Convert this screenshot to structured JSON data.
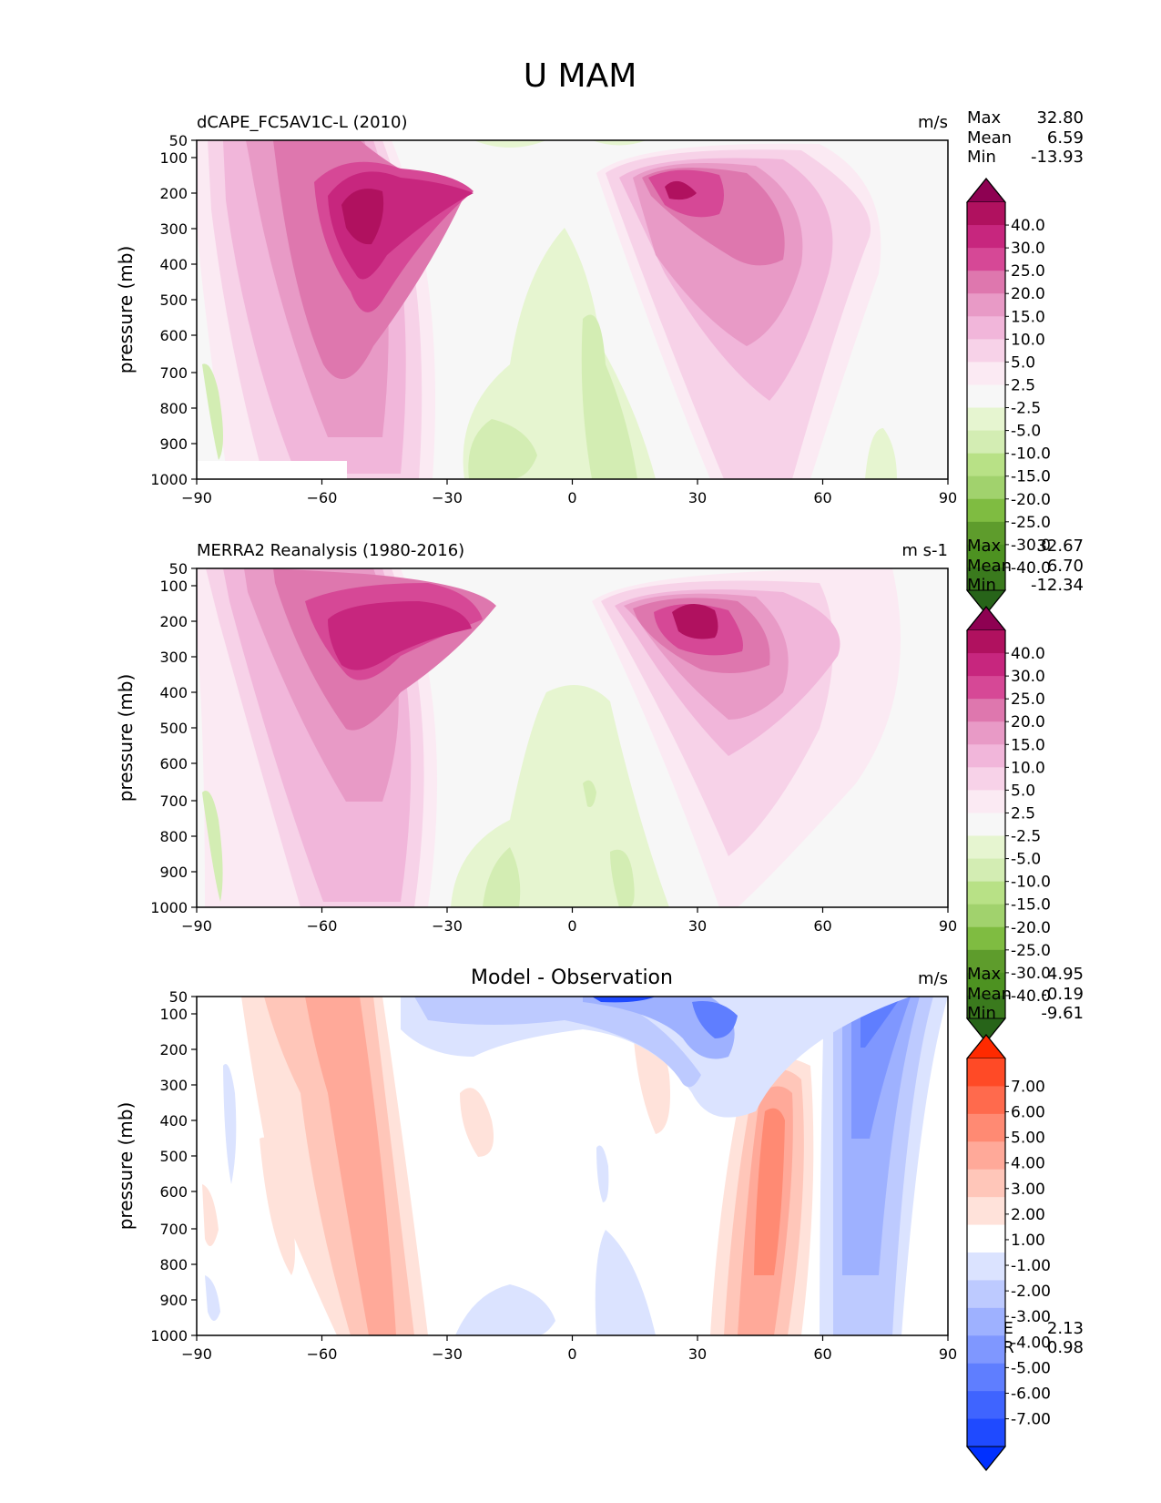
{
  "figure": {
    "title": "U MAM"
  },
  "chart_data": [
    {
      "type": "contour",
      "title": "dCAPE_FC5AV1C-L (2010)",
      "units": "m/s",
      "xlabel": "",
      "ylabel": "pressure (mb)",
      "xlim": [
        -90,
        90
      ],
      "ylim": [
        1000,
        50
      ],
      "xticks": [
        "−90",
        "−60",
        "−30",
        "0",
        "30",
        "60",
        "90"
      ],
      "yticks": [
        "50",
        "100",
        "200",
        "300",
        "400",
        "500",
        "600",
        "700",
        "800",
        "900",
        "1000"
      ],
      "stats": {
        "max_label": "Max",
        "max": "32.80",
        "mean_label": "Mean",
        "mean": "6.59",
        "min_label": "Min",
        "min": "-13.93"
      },
      "colorbar": {
        "levels": [
          "40.0",
          "30.0",
          "25.0",
          "20.0",
          "15.0",
          "10.0",
          "5.0",
          "2.5",
          "-2.5",
          "-5.0",
          "-10.0",
          "-15.0",
          "-20.0",
          "-25.0",
          "-30.0",
          "-40.0"
        ],
        "colors": [
          "#8e0152",
          "#b0115f",
          "#c7267e",
          "#d64896",
          "#de77ae",
          "#e89ac6",
          "#f1b6da",
          "#f7d2e8",
          "#fbeaf3",
          "#f7f7f7",
          "#e6f5d0",
          "#d3edb3",
          "#b8e186",
          "#a1d26d",
          "#7fbc41",
          "#5e9c2c",
          "#4d9221",
          "#3a7a1d",
          "#276419"
        ]
      },
      "features": [
        {
          "kind": "westerly jet",
          "lat": -50,
          "pressure": 250,
          "peak": 30
        },
        {
          "kind": "westerly jet",
          "lat": 27,
          "pressure": 200,
          "peak": 32.8
        },
        {
          "kind": "easterlies",
          "lat": 5,
          "pressure": 700,
          "peak": -10
        }
      ]
    },
    {
      "type": "contour",
      "title": "MERRA2 Reanalysis (1980-2016)",
      "units": "m s-1",
      "xlabel": "",
      "ylabel": "pressure (mb)",
      "xlim": [
        -90,
        90
      ],
      "ylim": [
        1000,
        50
      ],
      "xticks": [
        "−90",
        "−60",
        "−30",
        "0",
        "30",
        "60",
        "90"
      ],
      "yticks": [
        "50",
        "100",
        "200",
        "300",
        "400",
        "500",
        "600",
        "700",
        "800",
        "900",
        "1000"
      ],
      "stats": {
        "max_label": "Max",
        "max": "32.67",
        "mean_label": "Mean",
        "mean": "6.70",
        "min_label": "Min",
        "min": "-12.34"
      },
      "colorbar": {
        "levels": [
          "40.0",
          "30.0",
          "25.0",
          "20.0",
          "15.0",
          "10.0",
          "5.0",
          "2.5",
          "-2.5",
          "-5.0",
          "-10.0",
          "-15.0",
          "-20.0",
          "-25.0",
          "-30.0",
          "-40.0"
        ],
        "colors": [
          "#8e0152",
          "#b0115f",
          "#c7267e",
          "#d64896",
          "#de77ae",
          "#e89ac6",
          "#f1b6da",
          "#f7d2e8",
          "#fbeaf3",
          "#f7f7f7",
          "#e6f5d0",
          "#d3edb3",
          "#b8e186",
          "#a1d26d",
          "#7fbc41",
          "#5e9c2c",
          "#4d9221",
          "#3a7a1d",
          "#276419"
        ]
      },
      "features": [
        {
          "kind": "westerly jet",
          "lat": -48,
          "pressure": 250,
          "peak": 27
        },
        {
          "kind": "westerly jet",
          "lat": 30,
          "pressure": 200,
          "peak": 32.7
        },
        {
          "kind": "easterlies",
          "lat": 5,
          "pressure": 750,
          "peak": -7
        }
      ]
    },
    {
      "type": "contour",
      "title": "Model - Observation",
      "units": "m/s",
      "xlabel": "",
      "ylabel": "pressure (mb)",
      "xlim": [
        -90,
        90
      ],
      "ylim": [
        1000,
        50
      ],
      "xticks": [
        "−90",
        "−60",
        "−30",
        "0",
        "30",
        "60",
        "90"
      ],
      "yticks": [
        "50",
        "100",
        "200",
        "300",
        "400",
        "500",
        "600",
        "700",
        "800",
        "900",
        "1000"
      ],
      "stats": {
        "max_label": "Max",
        "max": "4.95",
        "mean_label": "Mean",
        "mean": "-0.19",
        "min_label": "Min",
        "min": "-9.61"
      },
      "extra_stats": {
        "rmse_label": "RMSE",
        "rmse": "2.13",
        "corr_label": "CORR",
        "corr": "0.98"
      },
      "colorbar": {
        "levels": [
          "7.00",
          "6.00",
          "5.00",
          "4.00",
          "3.00",
          "2.00",
          "1.00",
          "-1.00",
          "-2.00",
          "-3.00",
          "-4.00",
          "-5.00",
          "-6.00",
          "-7.00"
        ],
        "colors": [
          "#ff2a00",
          "#ff4a26",
          "#ff6a4d",
          "#ff8a73",
          "#ffa999",
          "#ffc6b9",
          "#ffe2da",
          "#ffffff",
          "#dbe3ff",
          "#bdcaff",
          "#9eb1ff",
          "#7f97ff",
          "#5f7eff",
          "#3f64ff",
          "#1f4aff",
          "#0030ff"
        ]
      },
      "features": [
        {
          "kind": "positive bias",
          "lat": -50,
          "pressure": 600,
          "peak": 4
        },
        {
          "kind": "positive bias",
          "lat": 47,
          "pressure": 450,
          "peak": 4.95
        },
        {
          "kind": "negative bias",
          "lat": 35,
          "pressure": 100,
          "peak": -9.6
        },
        {
          "kind": "negative bias",
          "lat": 72,
          "pressure": 300,
          "peak": -5
        }
      ]
    }
  ]
}
